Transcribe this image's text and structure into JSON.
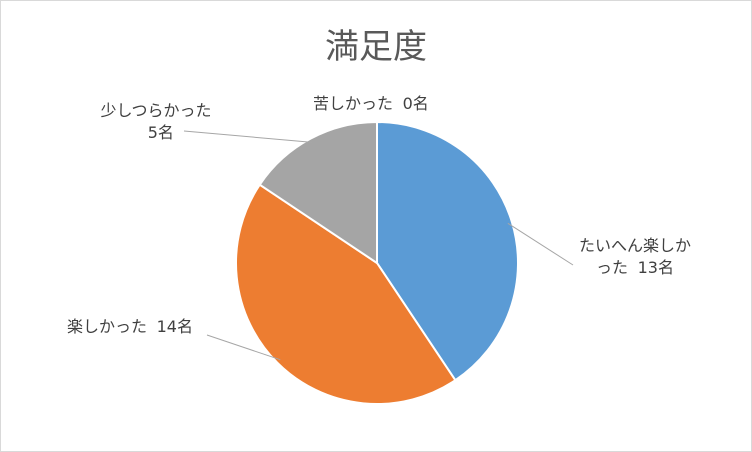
{
  "chart_data": {
    "type": "pie",
    "title": "満足度",
    "categories": [
      "たいへん楽しかった",
      "楽しかった",
      "少しつらかった",
      "苦しかった"
    ],
    "values": [
      13,
      14,
      5,
      0
    ],
    "value_labels": [
      "13名",
      "14名",
      "5名",
      "0名"
    ],
    "colors": [
      "#5b9bd5",
      "#ed7d31",
      "#a5a5a5",
      "#ffc000"
    ]
  }
}
